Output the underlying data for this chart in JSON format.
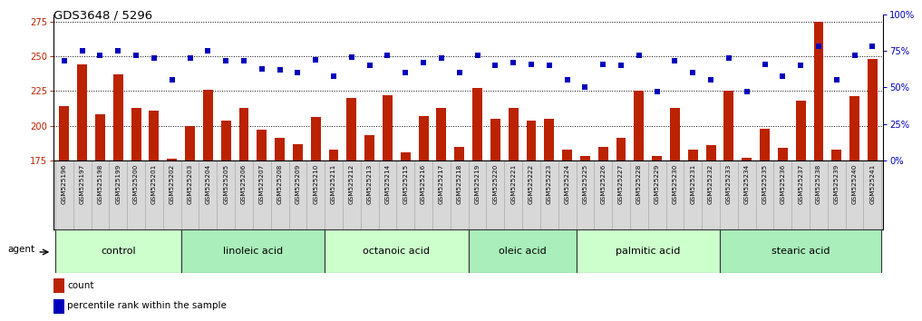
{
  "title": "GDS3648 / 5296",
  "samples": [
    "GSM525196",
    "GSM525197",
    "GSM525198",
    "GSM525199",
    "GSM525200",
    "GSM525201",
    "GSM525202",
    "GSM525203",
    "GSM525204",
    "GSM525205",
    "GSM525206",
    "GSM525207",
    "GSM525208",
    "GSM525209",
    "GSM525210",
    "GSM525211",
    "GSM525212",
    "GSM525213",
    "GSM525214",
    "GSM525215",
    "GSM525216",
    "GSM525217",
    "GSM525218",
    "GSM525219",
    "GSM525220",
    "GSM525221",
    "GSM525222",
    "GSM525223",
    "GSM525224",
    "GSM525225",
    "GSM525226",
    "GSM525227",
    "GSM525228",
    "GSM525229",
    "GSM525230",
    "GSM525231",
    "GSM525232",
    "GSM525233",
    "GSM525234",
    "GSM525235",
    "GSM525236",
    "GSM525237",
    "GSM525238",
    "GSM525239",
    "GSM525240",
    "GSM525241"
  ],
  "counts": [
    214,
    244,
    208,
    237,
    213,
    211,
    176,
    200,
    226,
    204,
    213,
    197,
    191,
    187,
    206,
    183,
    220,
    193,
    222,
    181,
    207,
    213,
    185,
    227,
    205,
    213,
    204,
    205,
    183,
    178,
    185,
    191,
    225,
    178,
    213,
    183,
    186,
    225,
    177,
    198,
    184,
    218,
    275,
    183,
    221,
    248
  ],
  "percentile_ranks": [
    68,
    75,
    72,
    75,
    72,
    70,
    55,
    70,
    75,
    68,
    68,
    63,
    62,
    60,
    69,
    58,
    71,
    65,
    72,
    60,
    67,
    70,
    60,
    72,
    65,
    67,
    66,
    65,
    55,
    50,
    66,
    65,
    72,
    47,
    68,
    60,
    55,
    70,
    47,
    66,
    58,
    65,
    78,
    55,
    72,
    78
  ],
  "groups": [
    {
      "label": "control",
      "start": 0,
      "end": 7,
      "color": "#ccffcc"
    },
    {
      "label": "linoleic acid",
      "start": 7,
      "end": 15,
      "color": "#aaeebb"
    },
    {
      "label": "octanoic acid",
      "start": 15,
      "end": 23,
      "color": "#ccffcc"
    },
    {
      "label": "oleic acid",
      "start": 23,
      "end": 29,
      "color": "#aaeebb"
    },
    {
      "label": "palmitic acid",
      "start": 29,
      "end": 37,
      "color": "#ccffcc"
    },
    {
      "label": "stearic acid",
      "start": 37,
      "end": 46,
      "color": "#aaeebb"
    }
  ],
  "bar_color": "#bb2200",
  "dot_color": "#0000bb",
  "ylim_left": [
    175,
    280
  ],
  "ylim_right": [
    0,
    100
  ],
  "yticks_left": [
    175,
    200,
    225,
    250,
    275
  ],
  "yticks_right": [
    0,
    25,
    50,
    75,
    100
  ],
  "background_color": "#ffffff",
  "plot_bg": "#ffffff",
  "title_fontsize": 9.5,
  "tick_fontsize": 5.2,
  "label_fontsize": 7.5,
  "group_fontsize": 8
}
